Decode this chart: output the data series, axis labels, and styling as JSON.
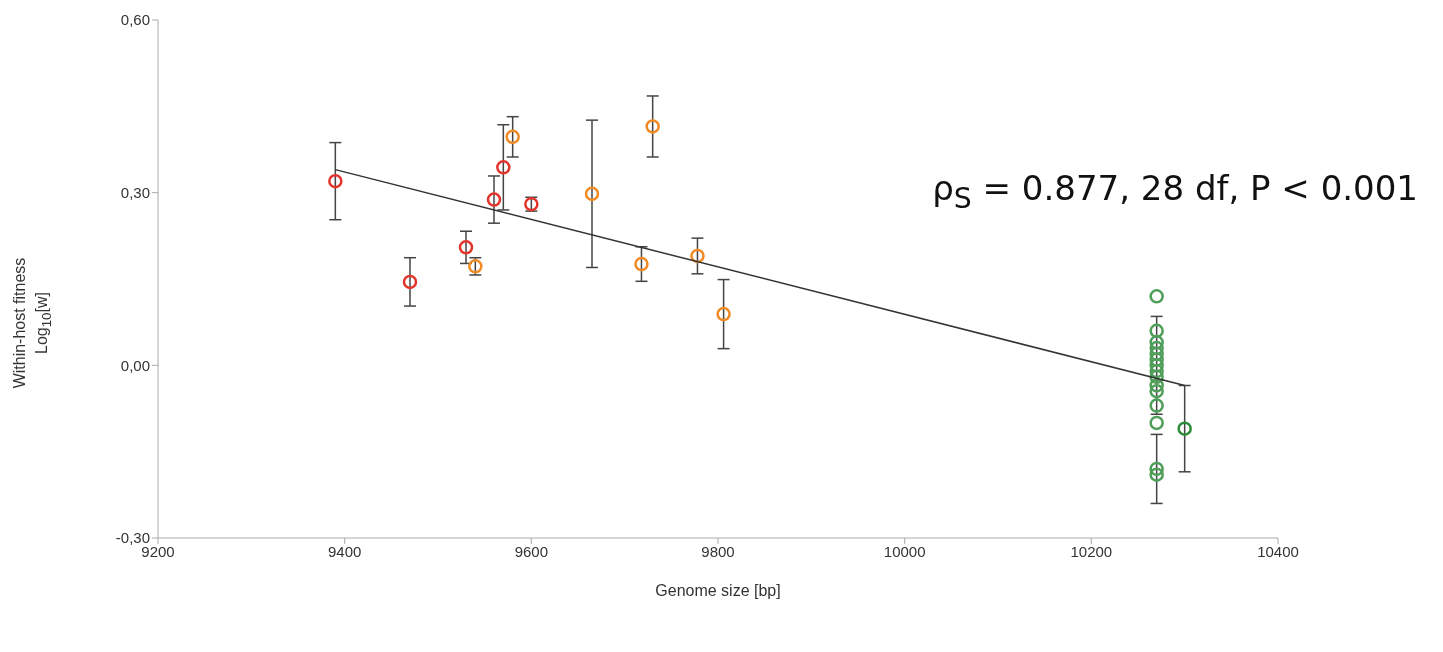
{
  "chart_data": {
    "type": "scatter",
    "xlabel": "Genome size [bp]",
    "ylabel": "Within-host fitness\nLog$_{10}$[w]",
    "annotations": [
      "ρ$_{S}$ = 0.877, 28 df, P < 0.001"
    ],
    "xlim": [
      9200,
      10400
    ],
    "xticks": [
      9200,
      9400,
      9600,
      9800,
      10000,
      10200,
      10400
    ],
    "ylim": [
      -0.3,
      0.6
    ],
    "yticks": [
      {
        "value": -0.3,
        "label": "-0,30"
      },
      {
        "value": 0,
        "label": "0,00"
      },
      {
        "value": 0.3,
        "label": "0,30"
      },
      {
        "value": 0.6,
        "label": "0,60"
      }
    ],
    "grid": false,
    "legend": false,
    "marker": "circle",
    "series": [
      {
        "color": "#e3342b",
        "x": [
          9390,
          9470,
          9530,
          9560,
          9570,
          9600
        ],
        "values": [
          0.32,
          0.145,
          0.205,
          0.288,
          0.344,
          0.28
        ],
        "errors": [
          0.067,
          0.042,
          0.028,
          0.041,
          0.074,
          0.012
        ]
      },
      {
        "color": "#f08a24",
        "x": [
          9580,
          9665,
          9718,
          9730,
          9778,
          9806
        ],
        "values": [
          0.397,
          0.298,
          0.176,
          0.415,
          0.19,
          0.089
        ],
        "errors": [
          0.035,
          0.128,
          0.03,
          0.053,
          0.031,
          0.06
        ]
      },
      {
        "color": "#f08a24",
        "x": [
          9540
        ],
        "values": [
          0.172
        ],
        "errors": [
          0.015
        ]
      },
      {
        "color": "#4f9e5a",
        "x": [
          10270,
          10270,
          10270,
          10270,
          10270,
          10270,
          10270,
          10270,
          10270,
          10270,
          10270,
          10270,
          10270,
          10270,
          10270
        ],
        "values": [
          0.12,
          0.06,
          0.04,
          0.03,
          0.02,
          0.01,
          0,
          -0.01,
          -0.02,
          -0.035,
          -0.045,
          -0.07,
          -0.1,
          -0.18,
          -0.19
        ],
        "errors": [
          null,
          null,
          null,
          null,
          null,
          null,
          0.085,
          null,
          null,
          null,
          null,
          null,
          null,
          0.06,
          null
        ]
      },
      {
        "color": "#2e8b3a",
        "x": [
          10300
        ],
        "values": [
          -0.11
        ],
        "errors": [
          0.075
        ]
      },
      {
        "type": "line",
        "color": "#333333",
        "x": [
          9390,
          10300
        ],
        "values": [
          0.34,
          -0.035
        ],
        "marker": "none"
      }
    ]
  }
}
